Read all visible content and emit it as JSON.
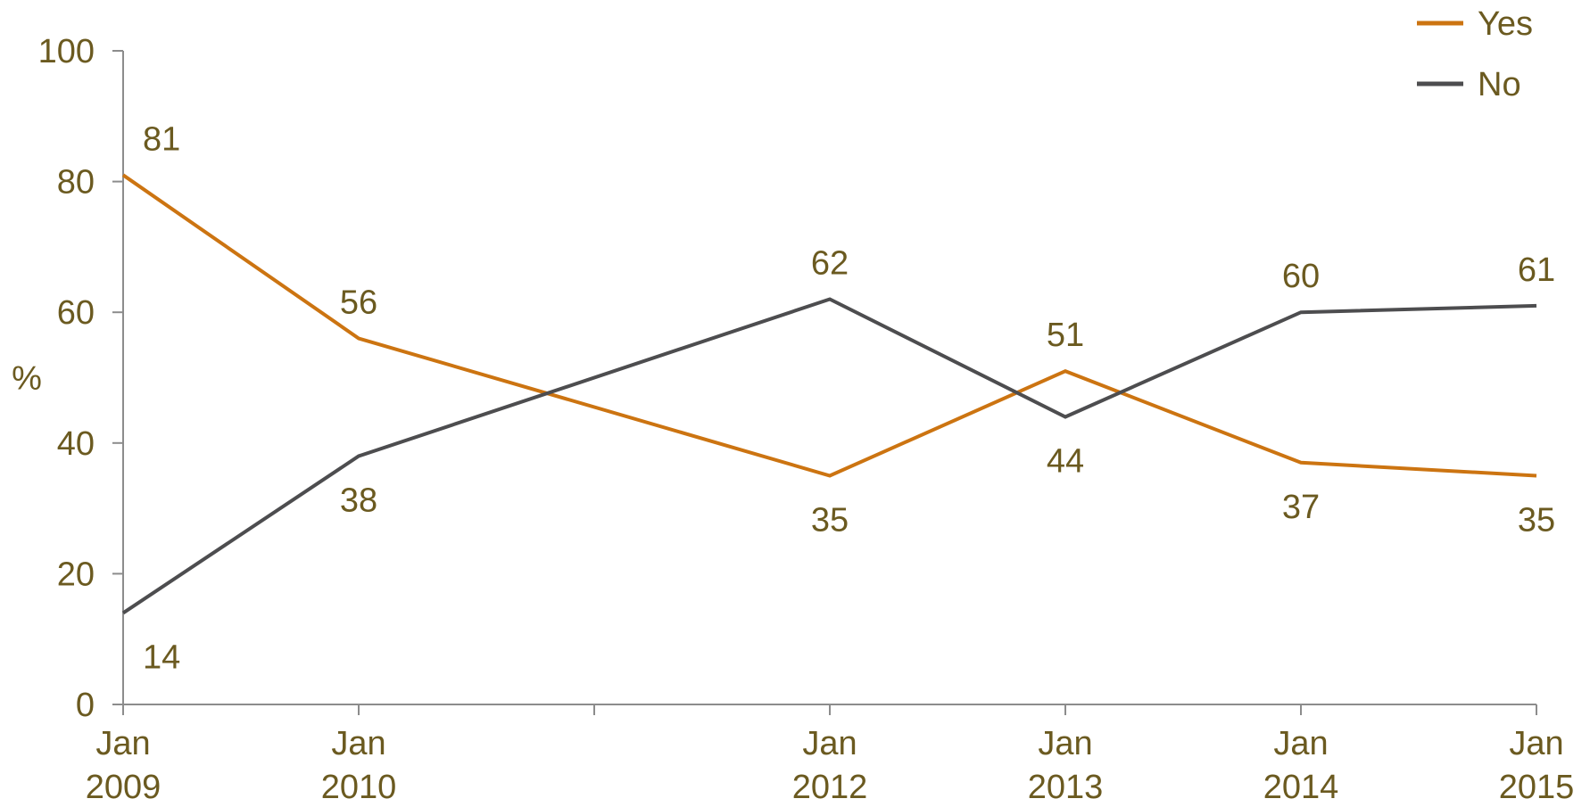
{
  "chart_data": {
    "type": "line",
    "categories": [
      "Jan\n2009",
      "Jan\n2010",
      "Jan\n2012",
      "Jan\n2013",
      "Jan\n2014",
      "Jan\n2015"
    ],
    "x": [
      "2009-01",
      "2010-01",
      "2012-01",
      "2013-01",
      "2014-01",
      "2015-01"
    ],
    "series": [
      {
        "name": "Yes",
        "color": "#cc7411",
        "values": [
          81,
          56,
          35,
          51,
          37,
          35
        ]
      },
      {
        "name": "No",
        "color": "#4d4d4f",
        "values": [
          14,
          38,
          62,
          44,
          60,
          61
        ]
      }
    ],
    "ylabel": "%",
    "ylim": [
      0,
      100
    ],
    "yticks": [
      0,
      20,
      40,
      60,
      80,
      100
    ],
    "xlim": [
      "2009-01",
      "2015-01"
    ],
    "grid": false,
    "legend": "top-right",
    "text_color": "#6b5a20",
    "axis_color": "#8c8c8c"
  }
}
